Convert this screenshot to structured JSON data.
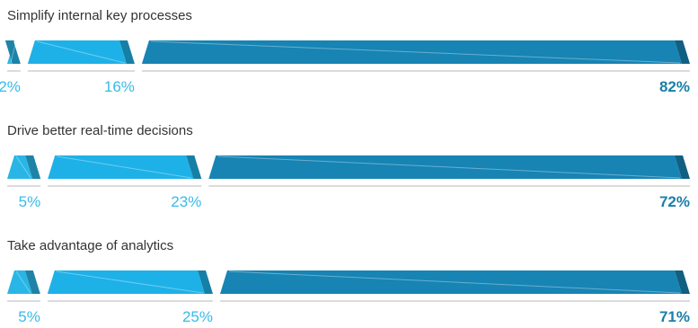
{
  "chart_data": {
    "type": "bar",
    "stacked": "horizontal",
    "grid": false,
    "legend": false,
    "segment_colors": [
      "#29b6e6",
      "#1eb1e7",
      "#1784b4"
    ],
    "label_colors": [
      "#38bbe8",
      "#38bbe8",
      "#1a7fa8"
    ],
    "categories": [
      "Simplify internal key processes",
      "Drive better real-time decisions",
      "Take advantage of analytics"
    ],
    "rows": [
      {
        "title": "Simplify internal key processes",
        "values": [
          2,
          16,
          82
        ],
        "labels": [
          "2%",
          "16%",
          "82%"
        ]
      },
      {
        "title": "Drive better real-time decisions",
        "values": [
          5,
          23,
          72
        ],
        "labels": [
          "5%",
          "23%",
          "72%"
        ]
      },
      {
        "title": "Take advantage of analytics",
        "values": [
          5,
          25,
          71
        ],
        "labels": [
          "5%",
          "25%",
          "71%"
        ]
      }
    ]
  }
}
